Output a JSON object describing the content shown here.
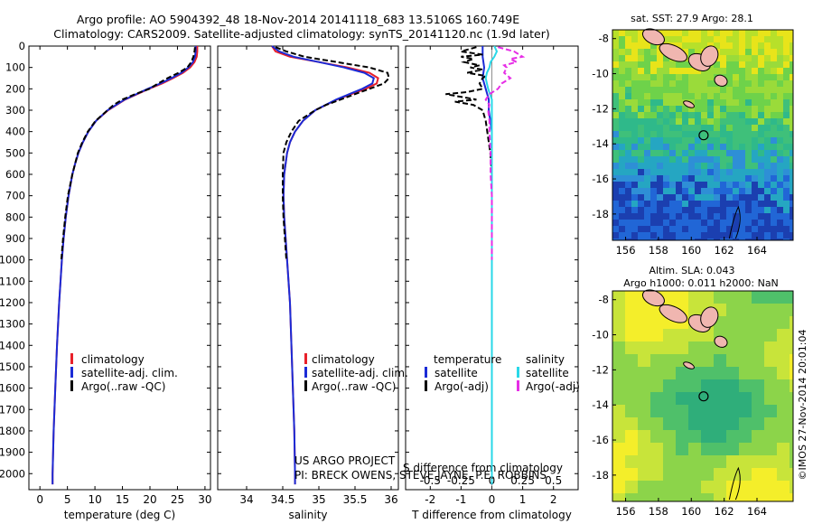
{
  "header": {
    "line1": "Argo profile: AO 5904392_48 18-Nov-2014 20141118_683 13.5106S 160.749E",
    "line2": "Climatology: CARS2009. Satellite-adjusted climatology: synTS_20141120.nc (1.9d later)"
  },
  "credits": {
    "project": "US ARGO PROJECT",
    "pi": "PI: BRECK OWENS, STEVE JAYNE, P.E. ROBBINS",
    "imos": "©IMOS 27-Nov-2014 20:01:04"
  },
  "colors": {
    "clim": "#e8202a",
    "sat": "#1b2bd6",
    "argo": "#000000",
    "sal_sat": "#29d8e8",
    "sal_argo": "#e62ee6"
  },
  "legend1": [
    "climatology",
    "satellite-adj. clim.",
    "Argo(..raw -QC)"
  ],
  "legend2": [
    "climatology",
    "satellite-adj. clim.",
    "Argo(..raw -QC)"
  ],
  "legend3": {
    "temp_head": "temperature",
    "sal_head": "salinity",
    "temp_items": [
      "satellite",
      "Argo(-adj)"
    ],
    "sal_items": [
      "satellite",
      "Argo(-adj)"
    ]
  },
  "maps": {
    "sst_title": "sat. SST: 27.9 Argo: 28.1",
    "sla_title1": "Altim. SLA: 0.043",
    "sla_title2": "Argo h1000: 0.011 h2000: NaN",
    "lon_ticks": [
      "156",
      "158",
      "160",
      "162",
      "164"
    ],
    "lat_ticks": [
      "-8",
      "-10",
      "-12",
      "-14",
      "-16",
      "-18"
    ],
    "float_lon": 160.749,
    "float_lat": -13.5106
  },
  "chart_data": [
    {
      "type": "line",
      "xlabel": "temperature (deg C)",
      "ylabel": "",
      "xlim": [
        -2,
        31
      ],
      "ylim": [
        2075,
        0
      ],
      "xticks": [
        0,
        5,
        10,
        15,
        20,
        25,
        30
      ],
      "yticks": [
        0,
        100,
        200,
        300,
        400,
        500,
        600,
        700,
        800,
        900,
        1000,
        1100,
        1200,
        1300,
        1400,
        1500,
        1600,
        1700,
        1800,
        1900,
        2000
      ],
      "series": [
        {
          "name": "climatology",
          "depth": [
            0,
            25,
            50,
            75,
            100,
            125,
            150,
            175,
            200,
            250,
            300,
            350,
            400,
            450,
            500,
            550,
            600,
            700,
            800,
            900,
            1000,
            1200,
            1400,
            1600,
            1800,
            2000,
            2050
          ],
          "values": [
            28.6,
            28.6,
            28.5,
            28.1,
            27.3,
            26.0,
            24.2,
            22.2,
            19.8,
            15.5,
            12.4,
            10.2,
            8.8,
            7.8,
            7.0,
            6.4,
            5.9,
            5.2,
            4.7,
            4.3,
            4.0,
            3.5,
            3.1,
            2.8,
            2.5,
            2.3,
            2.3
          ]
        },
        {
          "name": "satellite-adj. clim.",
          "depth": [
            0,
            25,
            50,
            75,
            100,
            125,
            150,
            175,
            200,
            250,
            300,
            350,
            400,
            450,
            500,
            550,
            600,
            700,
            800,
            900,
            1000,
            1200,
            1400,
            1600,
            1800,
            2000,
            2050
          ],
          "values": [
            28.3,
            28.3,
            28.2,
            27.8,
            27.0,
            25.7,
            23.9,
            21.9,
            19.6,
            15.4,
            12.3,
            10.2,
            8.8,
            7.8,
            7.0,
            6.4,
            5.9,
            5.2,
            4.7,
            4.3,
            4.0,
            3.5,
            3.1,
            2.8,
            2.5,
            2.3,
            2.3
          ]
        },
        {
          "name": "Argo(..raw -QC)",
          "depth": [
            5,
            25,
            50,
            75,
            100,
            125,
            150,
            175,
            200,
            225,
            250,
            275,
            300,
            350,
            400,
            450,
            500,
            600,
            700,
            800,
            900,
            1000
          ],
          "values": [
            28.2,
            28.1,
            27.9,
            27.5,
            26.8,
            25.2,
            23.2,
            21.5,
            19.9,
            17.3,
            15.0,
            13.4,
            12.3,
            10.1,
            8.7,
            7.7,
            6.9,
            5.9,
            5.1,
            4.6,
            4.2,
            3.9
          ]
        }
      ]
    },
    {
      "type": "line",
      "xlabel": "salinity",
      "ylabel": "",
      "xlim": [
        33.6,
        36.1
      ],
      "ylim": [
        2075,
        0
      ],
      "xticks": [
        34,
        34.5,
        35,
        35.5,
        36
      ],
      "series": [
        {
          "name": "climatology",
          "depth": [
            0,
            25,
            50,
            75,
            100,
            125,
            150,
            175,
            200,
            225,
            250,
            300,
            350,
            400,
            450,
            500,
            600,
            700,
            800,
            900,
            1000,
            1200,
            1400,
            1600,
            1800,
            2000,
            2050
          ],
          "values": [
            34.35,
            34.4,
            34.6,
            35.0,
            35.4,
            35.7,
            35.82,
            35.8,
            35.65,
            35.45,
            35.25,
            34.95,
            34.78,
            34.67,
            34.6,
            34.56,
            34.52,
            34.51,
            34.52,
            34.54,
            34.56,
            34.6,
            34.62,
            34.64,
            34.66,
            34.67,
            34.67
          ]
        },
        {
          "name": "satellite-adj. clim.",
          "depth": [
            0,
            25,
            50,
            75,
            100,
            125,
            150,
            175,
            200,
            225,
            250,
            300,
            350,
            400,
            450,
            500,
            600,
            700,
            800,
            900,
            1000,
            1200,
            1400,
            1600,
            1800,
            2000,
            2050
          ],
          "values": [
            34.35,
            34.45,
            34.65,
            35.0,
            35.35,
            35.63,
            35.76,
            35.74,
            35.6,
            35.42,
            35.24,
            34.95,
            34.78,
            34.67,
            34.6,
            34.56,
            34.52,
            34.51,
            34.52,
            34.54,
            34.56,
            34.6,
            34.62,
            34.64,
            34.66,
            34.67,
            34.67
          ]
        },
        {
          "name": "Argo(..raw -QC)",
          "depth": [
            5,
            25,
            50,
            75,
            100,
            125,
            150,
            175,
            200,
            225,
            250,
            275,
            300,
            350,
            400,
            450,
            500,
            600,
            700,
            800,
            900,
            1000
          ],
          "values": [
            34.4,
            34.55,
            34.8,
            35.25,
            35.7,
            35.95,
            35.97,
            35.9,
            35.7,
            35.5,
            35.3,
            35.1,
            34.95,
            34.72,
            34.62,
            34.55,
            34.51,
            34.5,
            34.5,
            34.51,
            34.53,
            34.55
          ]
        }
      ]
    },
    {
      "type": "line",
      "xlabel": "T difference from climatology",
      "xlabel_top": "S difference from climatology",
      "xlim": [
        -2.8,
        2.8
      ],
      "ylim": [
        2075,
        0
      ],
      "xticks": [
        -2,
        -1,
        0,
        1,
        2
      ],
      "xticks_top": [
        -0.5,
        -0.25,
        0,
        0.25,
        0.5
      ],
      "series": [
        {
          "name": "temperature satellite",
          "depth": [
            0,
            50,
            100,
            150,
            200,
            250,
            300,
            400,
            500,
            700,
            1000,
            1500,
            2000,
            2050
          ],
          "values": [
            -0.3,
            -0.3,
            -0.25,
            -0.3,
            -0.2,
            -0.1,
            -0.1,
            0,
            0,
            0,
            0,
            0,
            0,
            0
          ]
        },
        {
          "name": "temperature Argo(-adj)",
          "depth": [
            5,
            25,
            40,
            50,
            60,
            75,
            90,
            100,
            110,
            125,
            140,
            150,
            175,
            200,
            215,
            225,
            240,
            250,
            260,
            275,
            300,
            350,
            400,
            450,
            500,
            600,
            700,
            800,
            900,
            1000
          ],
          "values": [
            -0.5,
            -1.0,
            -0.3,
            -1.0,
            -0.6,
            -0.9,
            -0.4,
            -0.7,
            -0.3,
            -0.8,
            -0.2,
            -0.3,
            -0.4,
            -0.3,
            -0.8,
            -1.5,
            -0.9,
            -0.5,
            -1.2,
            -0.6,
            -0.3,
            -0.2,
            -0.15,
            -0.1,
            -0.05,
            0,
            0,
            0,
            0,
            0
          ]
        },
        {
          "name": "salinity satellite",
          "depth": [
            0,
            25,
            50,
            75,
            100,
            125,
            150,
            175,
            200,
            250,
            300,
            400,
            500,
            700,
            1000,
            1500,
            2000,
            2050
          ],
          "values": [
            0.02,
            0.04,
            0.02,
            -0.01,
            -0.02,
            -0.04,
            -0.05,
            -0.04,
            -0.03,
            0,
            0,
            0,
            0,
            0,
            0,
            0,
            0,
            0
          ]
        },
        {
          "name": "salinity Argo(-adj)",
          "depth": [
            5,
            25,
            50,
            60,
            75,
            90,
            100,
            125,
            150,
            175,
            200,
            225,
            250,
            275,
            300,
            350,
            400,
            500,
            600,
            700,
            800,
            900,
            1000
          ],
          "values": [
            0.05,
            0.18,
            0.25,
            0.15,
            0.2,
            0.1,
            0.12,
            0.1,
            0.15,
            0.08,
            0.05,
            -0.02,
            -0.05,
            -0.02,
            -0.03,
            -0.02,
            -0.02,
            -0.01,
            -0.01,
            0,
            0,
            0,
            0
          ]
        }
      ]
    }
  ]
}
